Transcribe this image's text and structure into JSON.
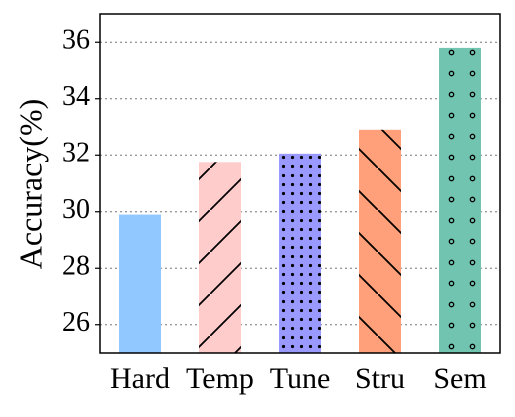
{
  "chart_data": {
    "type": "bar",
    "ylabel": "Accuracy(%)",
    "categories": [
      "Hard",
      "Temp",
      "Tune",
      "Stru",
      "Sem"
    ],
    "values": [
      29.9,
      31.75,
      32.05,
      32.9,
      35.8
    ],
    "colors": [
      "#90c8ff",
      "#ffcccc",
      "#9999ff",
      "#ffa07a",
      "#70c4b0"
    ],
    "ylim": [
      25,
      37
    ],
    "yticks": [
      26,
      28,
      30,
      32,
      34,
      36
    ],
    "grid": true
  }
}
